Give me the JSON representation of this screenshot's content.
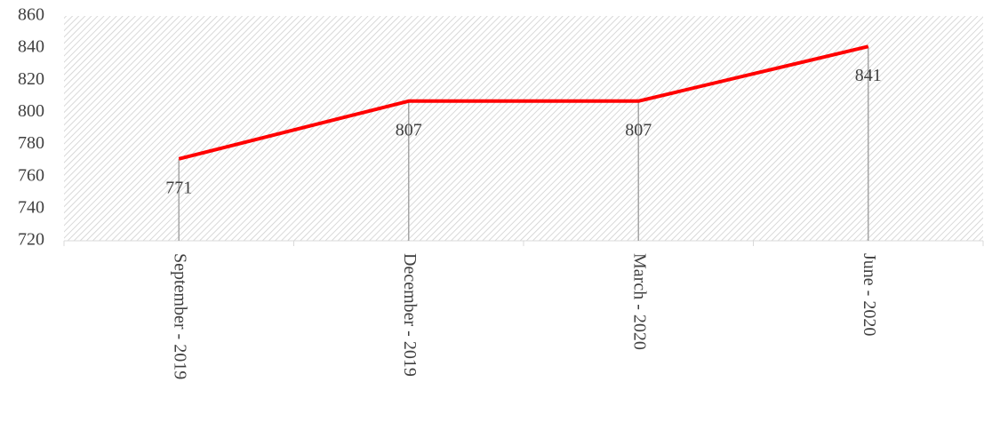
{
  "chart_data": {
    "type": "line",
    "categories": [
      "September - 2019",
      "December - 2019",
      "March - 2020",
      "June - 2020"
    ],
    "values": [
      771,
      807,
      807,
      841
    ],
    "color": "#ff0000",
    "ylim": [
      720,
      860
    ],
    "yticks": [
      720,
      740,
      760,
      780,
      800,
      820,
      840,
      860
    ],
    "drop_lines": true,
    "hatched_background": true
  }
}
